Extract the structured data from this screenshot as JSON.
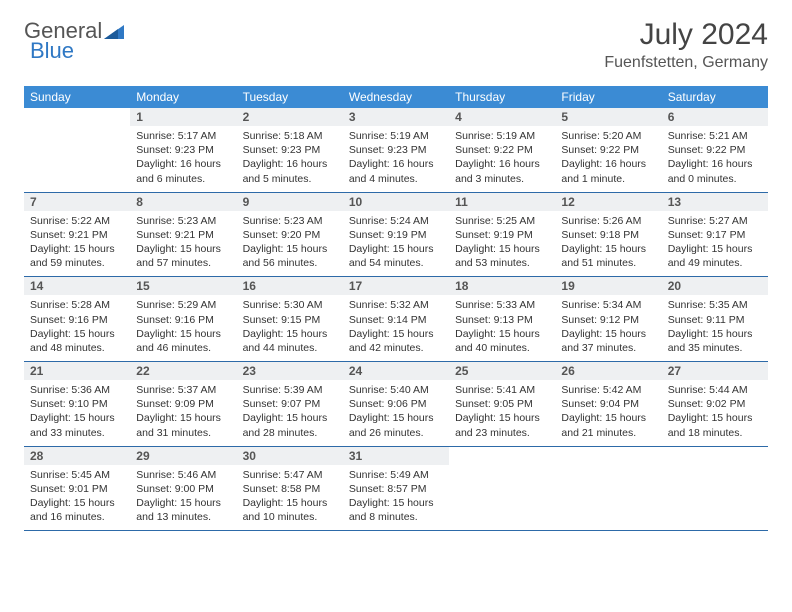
{
  "brand": {
    "part1": "General",
    "part2": "Blue"
  },
  "title": "July 2024",
  "location": "Fuenfstetten, Germany",
  "colors": {
    "header_bg": "#3b8bd4",
    "header_fg": "#ffffff",
    "daynum_bg": "#eef0f2",
    "rule": "#2d6aa8",
    "brand_blue": "#2f78c4"
  },
  "weekdays": [
    "Sunday",
    "Monday",
    "Tuesday",
    "Wednesday",
    "Thursday",
    "Friday",
    "Saturday"
  ],
  "weeks": [
    [
      null,
      {
        "n": "1",
        "sr": "Sunrise: 5:17 AM",
        "ss": "Sunset: 9:23 PM",
        "d1": "Daylight: 16 hours",
        "d2": "and 6 minutes."
      },
      {
        "n": "2",
        "sr": "Sunrise: 5:18 AM",
        "ss": "Sunset: 9:23 PM",
        "d1": "Daylight: 16 hours",
        "d2": "and 5 minutes."
      },
      {
        "n": "3",
        "sr": "Sunrise: 5:19 AM",
        "ss": "Sunset: 9:23 PM",
        "d1": "Daylight: 16 hours",
        "d2": "and 4 minutes."
      },
      {
        "n": "4",
        "sr": "Sunrise: 5:19 AM",
        "ss": "Sunset: 9:22 PM",
        "d1": "Daylight: 16 hours",
        "d2": "and 3 minutes."
      },
      {
        "n": "5",
        "sr": "Sunrise: 5:20 AM",
        "ss": "Sunset: 9:22 PM",
        "d1": "Daylight: 16 hours",
        "d2": "and 1 minute."
      },
      {
        "n": "6",
        "sr": "Sunrise: 5:21 AM",
        "ss": "Sunset: 9:22 PM",
        "d1": "Daylight: 16 hours",
        "d2": "and 0 minutes."
      }
    ],
    [
      {
        "n": "7",
        "sr": "Sunrise: 5:22 AM",
        "ss": "Sunset: 9:21 PM",
        "d1": "Daylight: 15 hours",
        "d2": "and 59 minutes."
      },
      {
        "n": "8",
        "sr": "Sunrise: 5:23 AM",
        "ss": "Sunset: 9:21 PM",
        "d1": "Daylight: 15 hours",
        "d2": "and 57 minutes."
      },
      {
        "n": "9",
        "sr": "Sunrise: 5:23 AM",
        "ss": "Sunset: 9:20 PM",
        "d1": "Daylight: 15 hours",
        "d2": "and 56 minutes."
      },
      {
        "n": "10",
        "sr": "Sunrise: 5:24 AM",
        "ss": "Sunset: 9:19 PM",
        "d1": "Daylight: 15 hours",
        "d2": "and 54 minutes."
      },
      {
        "n": "11",
        "sr": "Sunrise: 5:25 AM",
        "ss": "Sunset: 9:19 PM",
        "d1": "Daylight: 15 hours",
        "d2": "and 53 minutes."
      },
      {
        "n": "12",
        "sr": "Sunrise: 5:26 AM",
        "ss": "Sunset: 9:18 PM",
        "d1": "Daylight: 15 hours",
        "d2": "and 51 minutes."
      },
      {
        "n": "13",
        "sr": "Sunrise: 5:27 AM",
        "ss": "Sunset: 9:17 PM",
        "d1": "Daylight: 15 hours",
        "d2": "and 49 minutes."
      }
    ],
    [
      {
        "n": "14",
        "sr": "Sunrise: 5:28 AM",
        "ss": "Sunset: 9:16 PM",
        "d1": "Daylight: 15 hours",
        "d2": "and 48 minutes."
      },
      {
        "n": "15",
        "sr": "Sunrise: 5:29 AM",
        "ss": "Sunset: 9:16 PM",
        "d1": "Daylight: 15 hours",
        "d2": "and 46 minutes."
      },
      {
        "n": "16",
        "sr": "Sunrise: 5:30 AM",
        "ss": "Sunset: 9:15 PM",
        "d1": "Daylight: 15 hours",
        "d2": "and 44 minutes."
      },
      {
        "n": "17",
        "sr": "Sunrise: 5:32 AM",
        "ss": "Sunset: 9:14 PM",
        "d1": "Daylight: 15 hours",
        "d2": "and 42 minutes."
      },
      {
        "n": "18",
        "sr": "Sunrise: 5:33 AM",
        "ss": "Sunset: 9:13 PM",
        "d1": "Daylight: 15 hours",
        "d2": "and 40 minutes."
      },
      {
        "n": "19",
        "sr": "Sunrise: 5:34 AM",
        "ss": "Sunset: 9:12 PM",
        "d1": "Daylight: 15 hours",
        "d2": "and 37 minutes."
      },
      {
        "n": "20",
        "sr": "Sunrise: 5:35 AM",
        "ss": "Sunset: 9:11 PM",
        "d1": "Daylight: 15 hours",
        "d2": "and 35 minutes."
      }
    ],
    [
      {
        "n": "21",
        "sr": "Sunrise: 5:36 AM",
        "ss": "Sunset: 9:10 PM",
        "d1": "Daylight: 15 hours",
        "d2": "and 33 minutes."
      },
      {
        "n": "22",
        "sr": "Sunrise: 5:37 AM",
        "ss": "Sunset: 9:09 PM",
        "d1": "Daylight: 15 hours",
        "d2": "and 31 minutes."
      },
      {
        "n": "23",
        "sr": "Sunrise: 5:39 AM",
        "ss": "Sunset: 9:07 PM",
        "d1": "Daylight: 15 hours",
        "d2": "and 28 minutes."
      },
      {
        "n": "24",
        "sr": "Sunrise: 5:40 AM",
        "ss": "Sunset: 9:06 PM",
        "d1": "Daylight: 15 hours",
        "d2": "and 26 minutes."
      },
      {
        "n": "25",
        "sr": "Sunrise: 5:41 AM",
        "ss": "Sunset: 9:05 PM",
        "d1": "Daylight: 15 hours",
        "d2": "and 23 minutes."
      },
      {
        "n": "26",
        "sr": "Sunrise: 5:42 AM",
        "ss": "Sunset: 9:04 PM",
        "d1": "Daylight: 15 hours",
        "d2": "and 21 minutes."
      },
      {
        "n": "27",
        "sr": "Sunrise: 5:44 AM",
        "ss": "Sunset: 9:02 PM",
        "d1": "Daylight: 15 hours",
        "d2": "and 18 minutes."
      }
    ],
    [
      {
        "n": "28",
        "sr": "Sunrise: 5:45 AM",
        "ss": "Sunset: 9:01 PM",
        "d1": "Daylight: 15 hours",
        "d2": "and 16 minutes."
      },
      {
        "n": "29",
        "sr": "Sunrise: 5:46 AM",
        "ss": "Sunset: 9:00 PM",
        "d1": "Daylight: 15 hours",
        "d2": "and 13 minutes."
      },
      {
        "n": "30",
        "sr": "Sunrise: 5:47 AM",
        "ss": "Sunset: 8:58 PM",
        "d1": "Daylight: 15 hours",
        "d2": "and 10 minutes."
      },
      {
        "n": "31",
        "sr": "Sunrise: 5:49 AM",
        "ss": "Sunset: 8:57 PM",
        "d1": "Daylight: 15 hours",
        "d2": "and 8 minutes."
      },
      null,
      null,
      null
    ]
  ]
}
